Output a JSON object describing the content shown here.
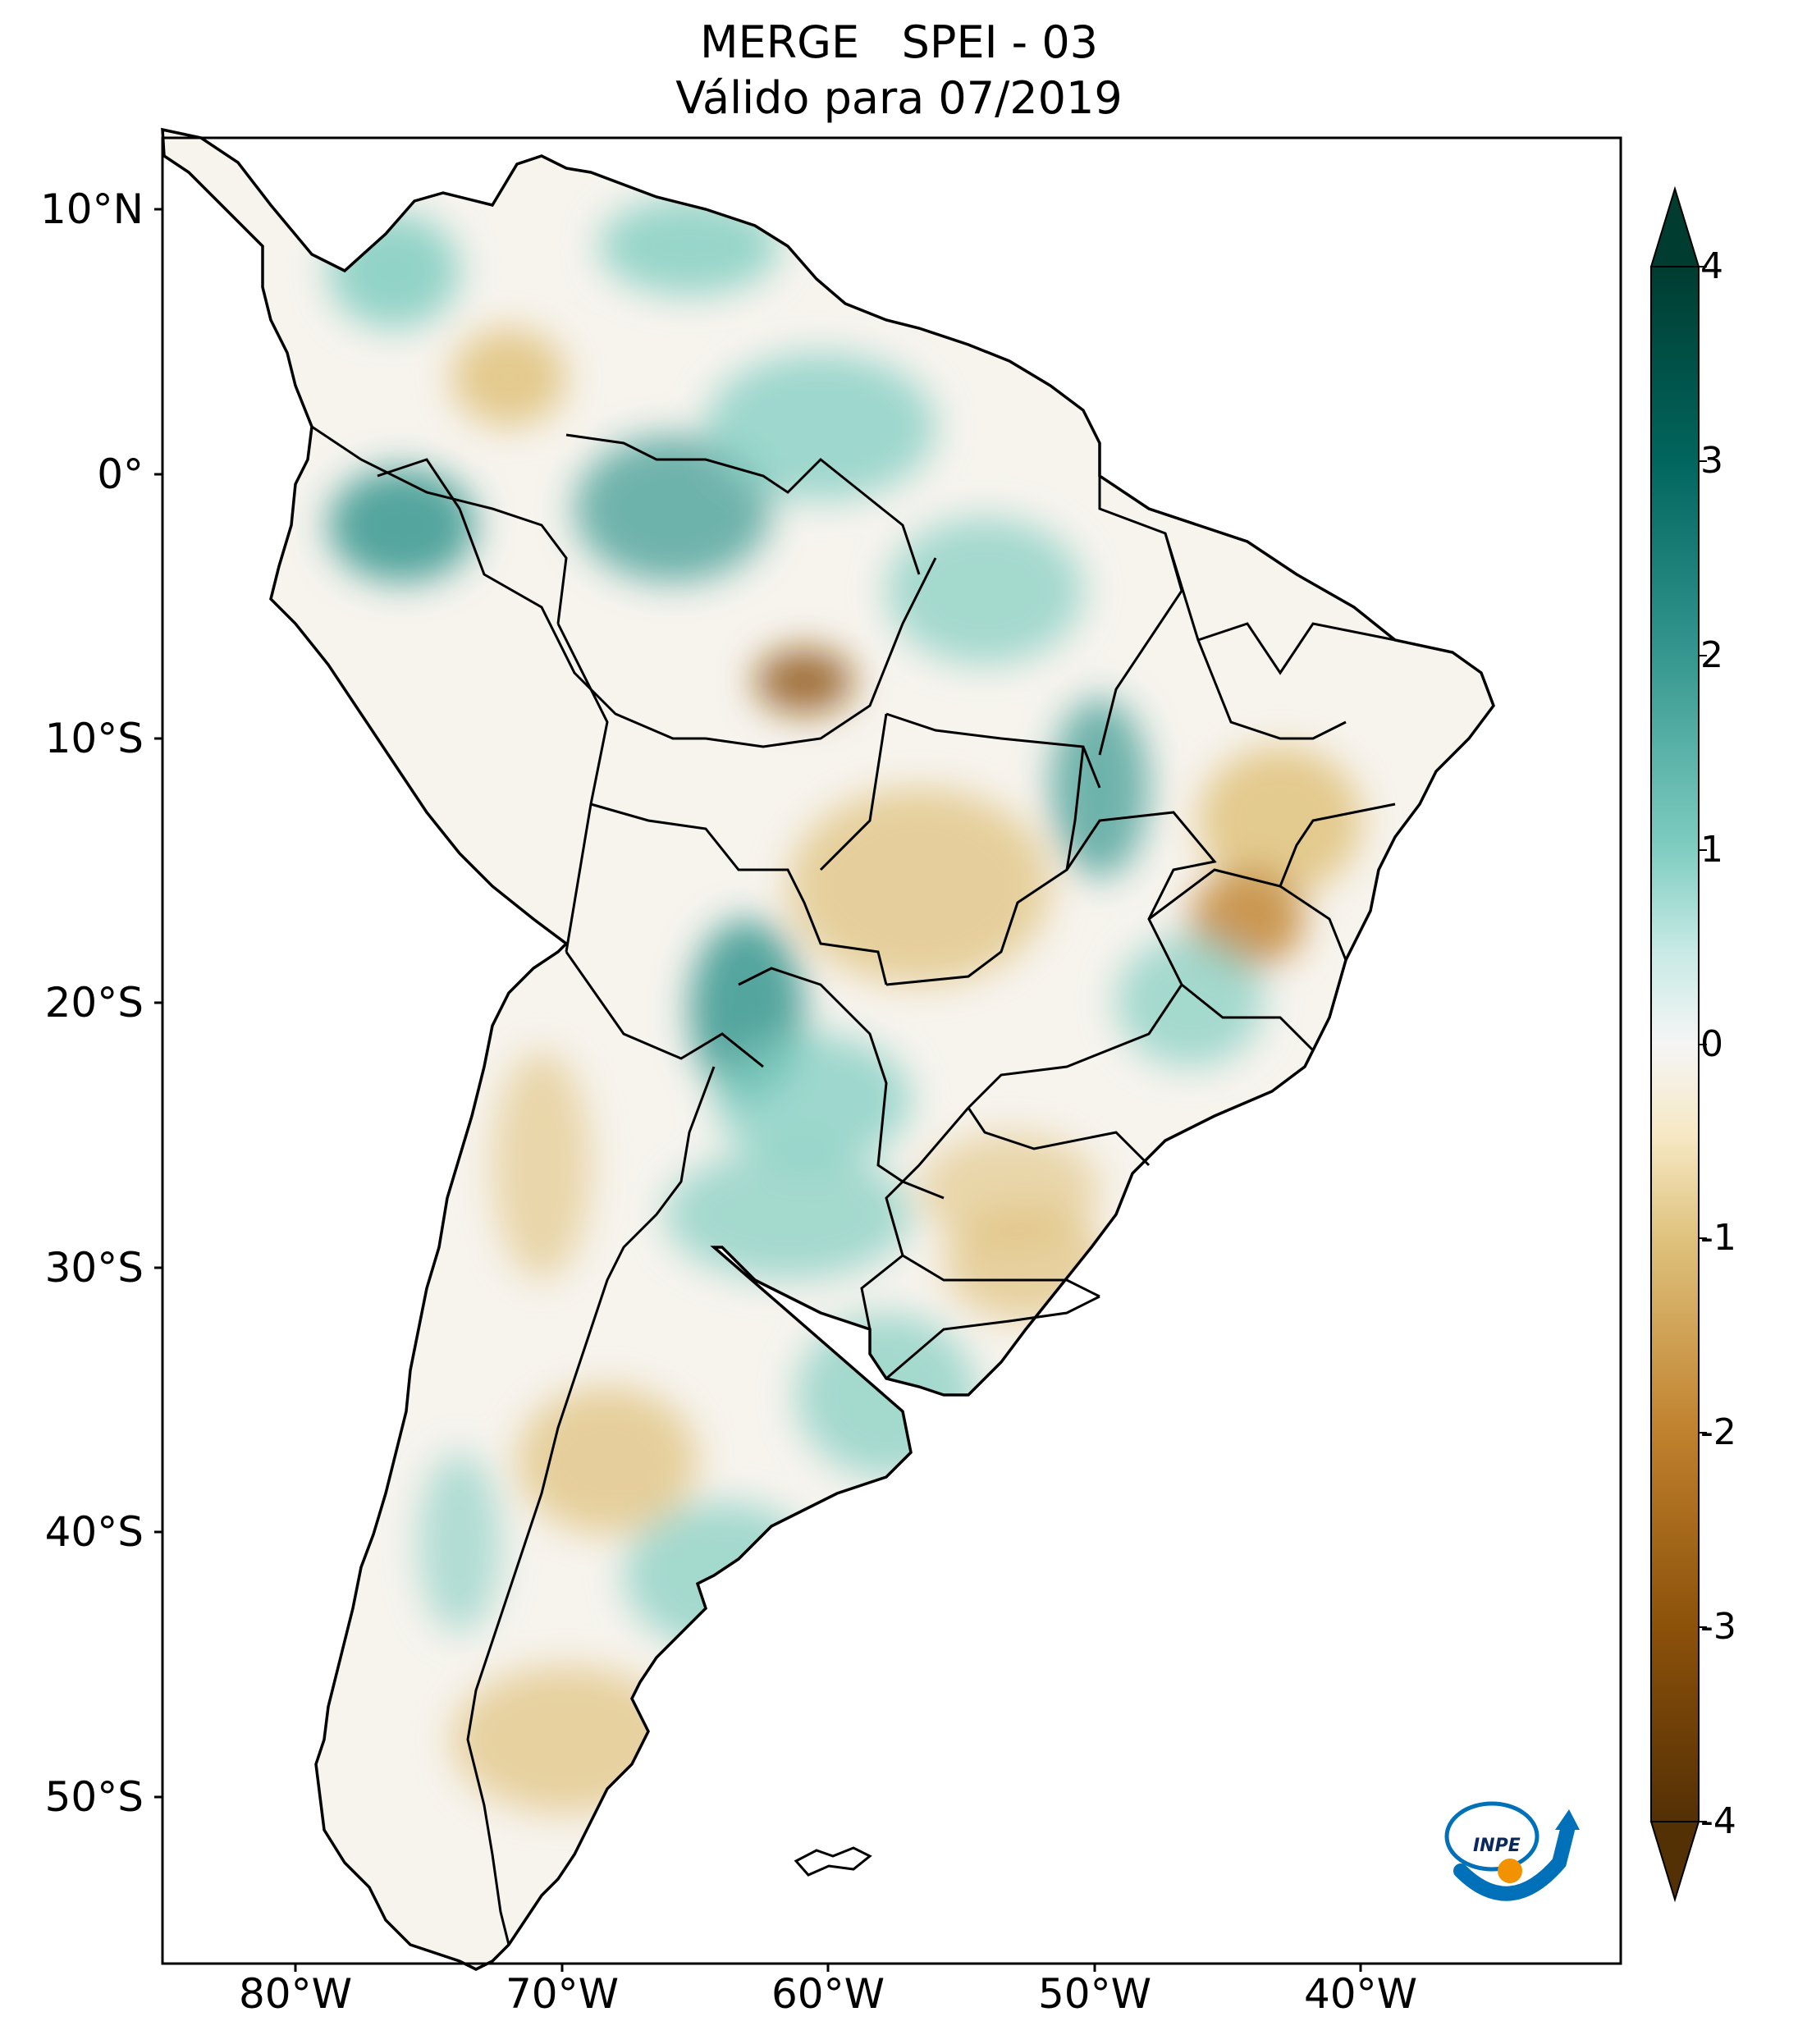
{
  "title": {
    "line1": "MERGE   SPEI - 03",
    "line2": "Válido para 07/2019"
  },
  "axes": {
    "lat_labels": [
      "10°N",
      "0°",
      "10°S",
      "20°S",
      "30°S",
      "40°S",
      "50°S"
    ],
    "lon_labels": [
      "80°W",
      "70°W",
      "60°W",
      "50°W",
      "40°W"
    ]
  },
  "colorbar": {
    "ticks": [
      "4",
      "3",
      "2",
      "1",
      "0",
      "-1",
      "-2",
      "-3",
      "-4"
    ],
    "colors": {
      "max": "#003c30",
      "high": "#35978f",
      "mid_high": "#c7eae5",
      "zero": "#f5f5f5",
      "mid_low": "#f6e8c3",
      "low": "#bf812d",
      "min": "#543005"
    }
  },
  "logo": {
    "text": "INPE",
    "blue": "#0071b9",
    "orange": "#f39200"
  },
  "map": {
    "ocean": "#ffffff",
    "land_base": "#f7f4ee",
    "border": "#000000"
  }
}
